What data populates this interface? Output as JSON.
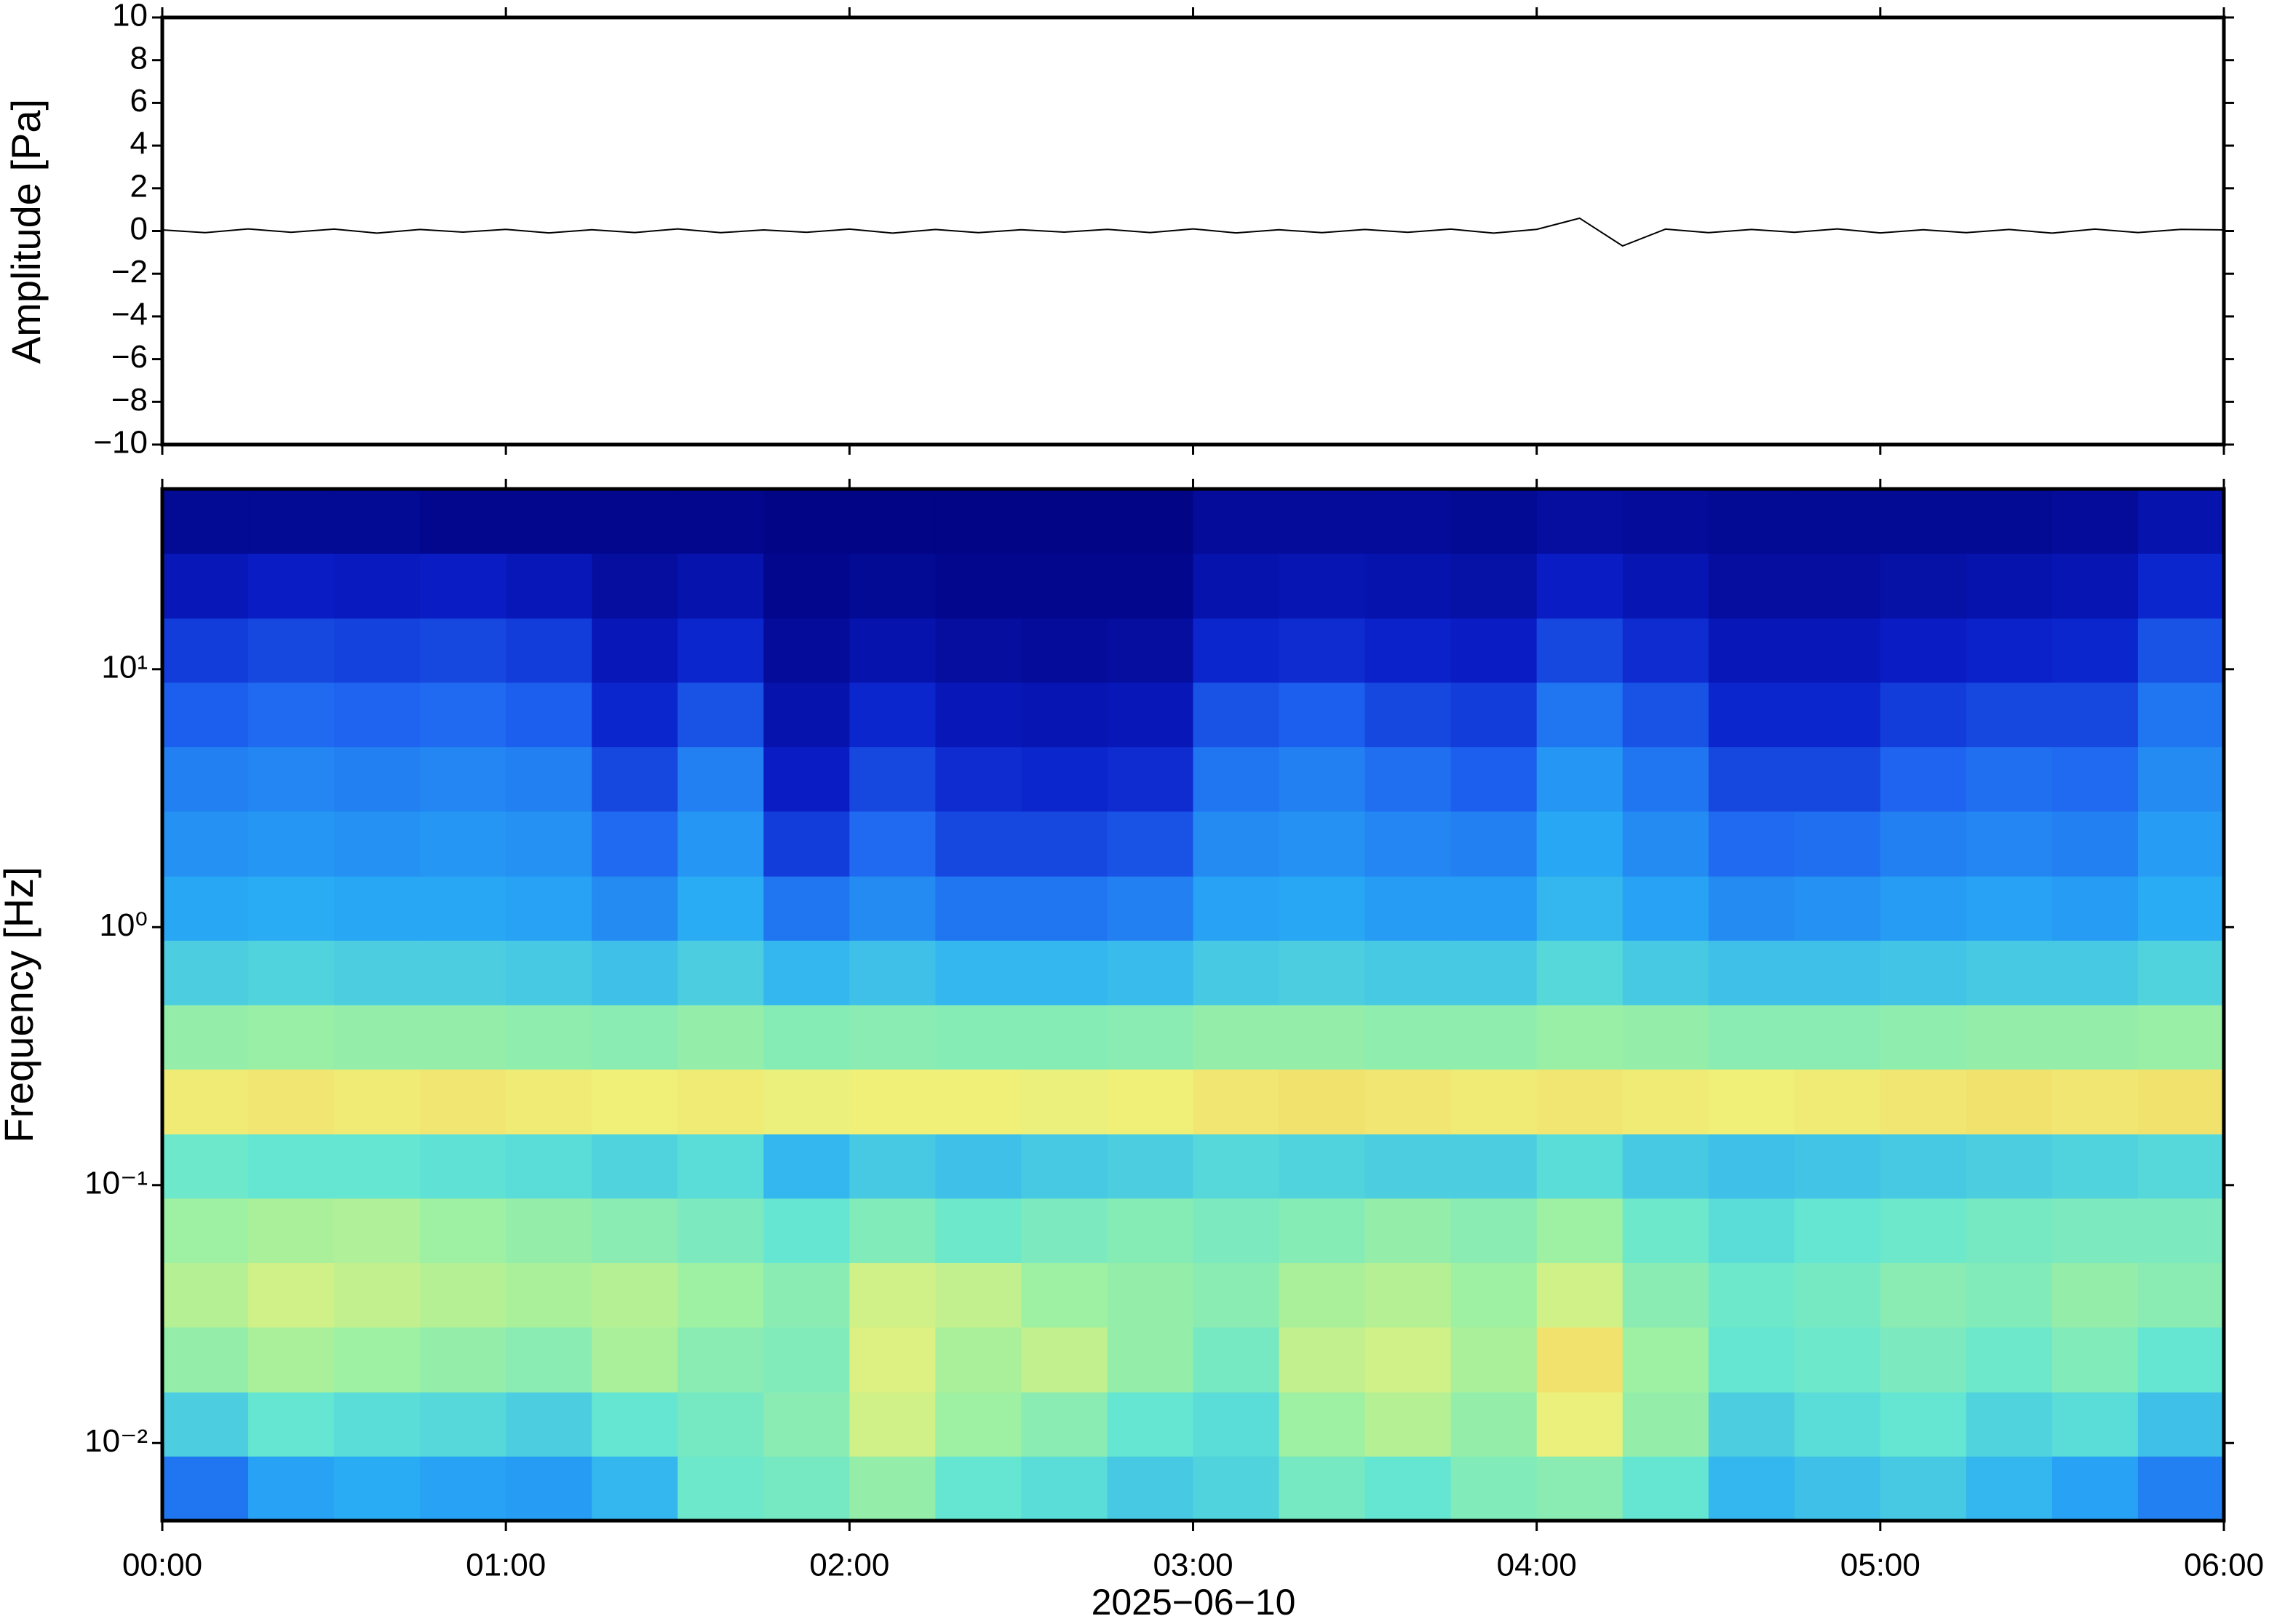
{
  "chart_data": [
    {
      "type": "line",
      "ylabel": "Amplitude [Pa]",
      "color": "#000000",
      "x": [
        0,
        0.125,
        0.25,
        0.375,
        0.5,
        0.625,
        0.75,
        0.875,
        1,
        1.125,
        1.25,
        1.375,
        1.5,
        1.625,
        1.75,
        1.875,
        2,
        2.125,
        2.25,
        2.375,
        2.5,
        2.625,
        2.75,
        2.875,
        3,
        3.125,
        3.25,
        3.375,
        3.5,
        3.625,
        3.75,
        3.875,
        4,
        4.125,
        4.25,
        4.375,
        4.5,
        4.625,
        4.75,
        4.875,
        5,
        5.125,
        5.25,
        5.375,
        5.5,
        5.625,
        5.75,
        5.875,
        6
      ],
      "values": [
        0.05,
        -0.08,
        0.1,
        -0.06,
        0.09,
        -0.1,
        0.07,
        -0.05,
        0.08,
        -0.09,
        0.06,
        -0.07,
        0.1,
        -0.08,
        0.05,
        -0.06,
        0.09,
        -0.1,
        0.07,
        -0.08,
        0.06,
        -0.05,
        0.08,
        -0.07,
        0.1,
        -0.09,
        0.06,
        -0.08,
        0.07,
        -0.06,
        0.09,
        -0.1,
        0.08,
        0.6,
        -0.7,
        0.09,
        -0.08,
        0.07,
        -0.06,
        0.1,
        -0.09,
        0.06,
        -0.08,
        0.07,
        -0.1,
        0.09,
        -0.07,
        0.08,
        0.05
      ],
      "xlim": [
        0,
        6
      ],
      "ylim": [
        -10,
        10
      ],
      "yticks": [
        {
          "value": -10,
          "label": "−10"
        },
        {
          "value": -8,
          "label": "−8"
        },
        {
          "value": -6,
          "label": "−6"
        },
        {
          "value": -4,
          "label": "−4"
        },
        {
          "value": -2,
          "label": "−2"
        },
        0,
        2,
        4,
        6,
        8,
        10
      ]
    },
    {
      "type": "heatmap",
      "ylabel": "Frequency [Hz]",
      "xlabel": "2025−06−10",
      "ylog": true,
      "xlim": [
        0,
        6
      ],
      "ylim": [
        0.005,
        50
      ],
      "xticks": [
        {
          "value": 0,
          "label": "00:00"
        },
        {
          "value": 1,
          "label": "01:00"
        },
        {
          "value": 2,
          "label": "02:00"
        },
        {
          "value": 3,
          "label": "03:00"
        },
        {
          "value": 4,
          "label": "04:00"
        },
        {
          "value": 5,
          "label": "05:00"
        },
        {
          "value": 6,
          "label": "06:00"
        }
      ],
      "yticks": [
        {
          "value": 0.01,
          "label": "10⁻²"
        },
        {
          "value": 0.1,
          "label": "10⁻¹"
        },
        {
          "value": 1,
          "label": "10⁰"
        },
        {
          "value": 10,
          "label": "10¹"
        }
      ],
      "colormap": [
        "#00007a",
        "#0a1ec8",
        "#1e64f0",
        "#28aaf5",
        "#64e6d2",
        "#a0f0a0",
        "#f0f078",
        "#f5b450",
        "#f07830"
      ],
      "x_edges": [
        0,
        0.25,
        0.5,
        0.75,
        1,
        1.25,
        1.5,
        1.75,
        2,
        2.25,
        2.5,
        2.75,
        3,
        3.25,
        3.5,
        3.75,
        4,
        4.25,
        4.5,
        4.75,
        5,
        5.25,
        5.5,
        5.75,
        6
      ],
      "y_edges": [
        0.00501,
        0.00891,
        0.0158,
        0.0282,
        0.0501,
        0.0891,
        0.158,
        0.282,
        0.501,
        0.891,
        1.58,
        2.82,
        5.01,
        8.91,
        15.8,
        28.2,
        50.1
      ],
      "values": [
        [
          0.28,
          0.36,
          0.38,
          0.36,
          0.35,
          0.4,
          0.52,
          0.54,
          0.6,
          0.5,
          0.48,
          0.44,
          0.46,
          0.54,
          0.5,
          0.56,
          0.58,
          0.5,
          0.4,
          0.42,
          0.44,
          0.4,
          0.36,
          0.3
        ],
        [
          0.45,
          0.5,
          0.48,
          0.47,
          0.45,
          0.5,
          0.54,
          0.58,
          0.7,
          0.62,
          0.58,
          0.5,
          0.48,
          0.62,
          0.66,
          0.6,
          0.74,
          0.6,
          0.45,
          0.48,
          0.5,
          0.46,
          0.48,
          0.42
        ],
        [
          0.6,
          0.64,
          0.62,
          0.6,
          0.58,
          0.64,
          0.58,
          0.56,
          0.72,
          0.64,
          0.68,
          0.6,
          0.54,
          0.68,
          0.7,
          0.64,
          0.78,
          0.62,
          0.5,
          0.52,
          0.55,
          0.52,
          0.56,
          0.5
        ],
        [
          0.66,
          0.7,
          0.68,
          0.66,
          0.64,
          0.66,
          0.62,
          0.58,
          0.7,
          0.68,
          0.62,
          0.6,
          0.58,
          0.64,
          0.66,
          0.62,
          0.7,
          0.58,
          0.52,
          0.54,
          0.58,
          0.56,
          0.6,
          0.58
        ],
        [
          0.62,
          0.64,
          0.65,
          0.62,
          0.6,
          0.58,
          0.55,
          0.5,
          0.56,
          0.52,
          0.55,
          0.57,
          0.55,
          0.57,
          0.6,
          0.58,
          0.62,
          0.52,
          0.48,
          0.5,
          0.52,
          0.54,
          0.55,
          0.55
        ],
        [
          0.52,
          0.5,
          0.5,
          0.49,
          0.48,
          0.46,
          0.48,
          0.4,
          0.44,
          0.42,
          0.44,
          0.45,
          0.47,
          0.46,
          0.45,
          0.45,
          0.48,
          0.44,
          0.42,
          0.43,
          0.44,
          0.45,
          0.46,
          0.47
        ],
        [
          0.76,
          0.77,
          0.76,
          0.77,
          0.76,
          0.75,
          0.76,
          0.74,
          0.75,
          0.75,
          0.74,
          0.75,
          0.77,
          0.78,
          0.77,
          0.76,
          0.77,
          0.76,
          0.75,
          0.76,
          0.77,
          0.78,
          0.77,
          0.78
        ],
        [
          0.6,
          0.61,
          0.6,
          0.6,
          0.59,
          0.58,
          0.6,
          0.57,
          0.58,
          0.57,
          0.57,
          0.58,
          0.6,
          0.6,
          0.59,
          0.59,
          0.61,
          0.6,
          0.58,
          0.58,
          0.59,
          0.6,
          0.6,
          0.61
        ],
        [
          0.45,
          0.46,
          0.45,
          0.45,
          0.44,
          0.42,
          0.45,
          0.4,
          0.42,
          0.4,
          0.4,
          0.41,
          0.44,
          0.45,
          0.44,
          0.44,
          0.47,
          0.44,
          0.42,
          0.42,
          0.43,
          0.44,
          0.44,
          0.46
        ],
        [
          0.37,
          0.38,
          0.37,
          0.37,
          0.36,
          0.32,
          0.38,
          0.28,
          0.32,
          0.28,
          0.28,
          0.3,
          0.36,
          0.37,
          0.35,
          0.35,
          0.4,
          0.36,
          0.32,
          0.33,
          0.35,
          0.36,
          0.35,
          0.38
        ],
        [
          0.33,
          0.34,
          0.33,
          0.34,
          0.33,
          0.26,
          0.34,
          0.18,
          0.26,
          0.2,
          0.2,
          0.22,
          0.32,
          0.33,
          0.31,
          0.3,
          0.37,
          0.32,
          0.26,
          0.27,
          0.3,
          0.31,
          0.3,
          0.35
        ],
        [
          0.3,
          0.31,
          0.3,
          0.31,
          0.3,
          0.2,
          0.3,
          0.12,
          0.2,
          0.15,
          0.14,
          0.15,
          0.28,
          0.3,
          0.27,
          0.24,
          0.34,
          0.28,
          0.2,
          0.2,
          0.25,
          0.27,
          0.26,
          0.32
        ],
        [
          0.24,
          0.26,
          0.25,
          0.26,
          0.24,
          0.14,
          0.22,
          0.08,
          0.14,
          0.1,
          0.09,
          0.1,
          0.22,
          0.24,
          0.2,
          0.18,
          0.28,
          0.22,
          0.14,
          0.14,
          0.18,
          0.2,
          0.2,
          0.28
        ],
        [
          0.18,
          0.2,
          0.19,
          0.2,
          0.18,
          0.1,
          0.14,
          0.05,
          0.08,
          0.06,
          0.05,
          0.06,
          0.14,
          0.15,
          0.13,
          0.12,
          0.2,
          0.15,
          0.1,
          0.1,
          0.12,
          0.13,
          0.14,
          0.22
        ],
        [
          0.1,
          0.12,
          0.11,
          0.12,
          0.1,
          0.06,
          0.08,
          0.03,
          0.04,
          0.03,
          0.03,
          0.03,
          0.08,
          0.09,
          0.08,
          0.07,
          0.12,
          0.09,
          0.06,
          0.06,
          0.07,
          0.08,
          0.09,
          0.14
        ],
        [
          0.04,
          0.04,
          0.04,
          0.03,
          0.03,
          0.03,
          0.03,
          0.02,
          0.02,
          0.02,
          0.02,
          0.02,
          0.05,
          0.05,
          0.05,
          0.04,
          0.06,
          0.05,
          0.04,
          0.04,
          0.04,
          0.04,
          0.05,
          0.08
        ]
      ]
    }
  ]
}
